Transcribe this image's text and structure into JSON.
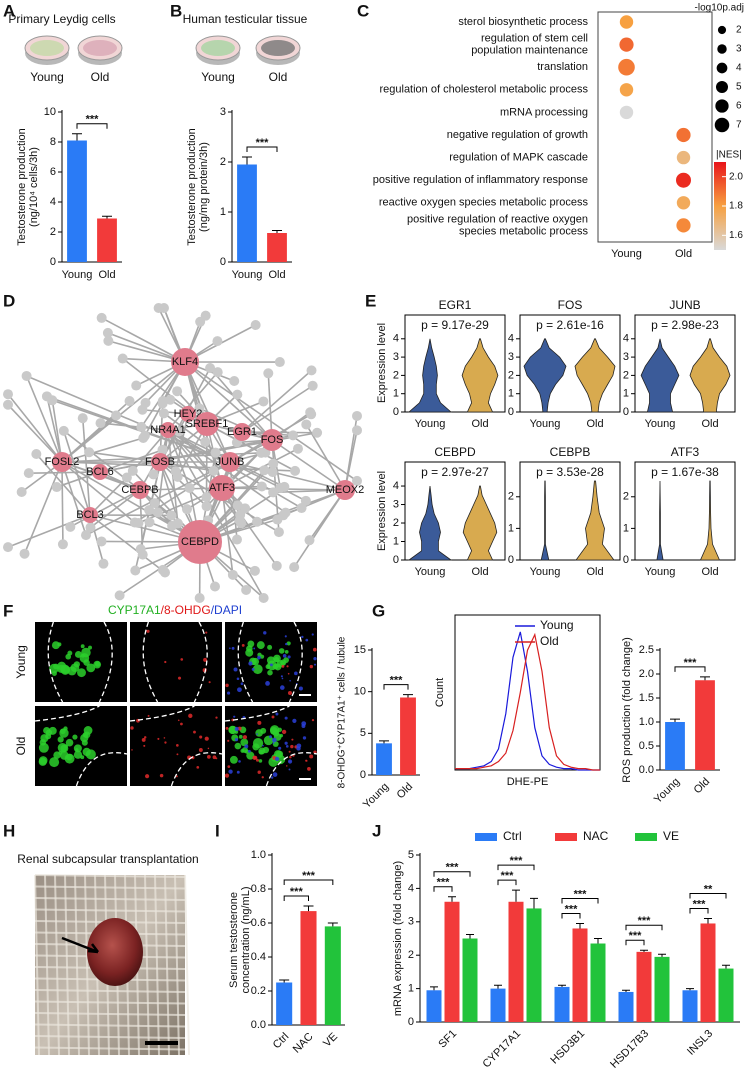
{
  "chart_data": [
    {
      "type": "bar",
      "panel": "A",
      "title": "Primary Leydig cells",
      "categories": [
        "Young",
        "Old"
      ],
      "values": [
        8.1,
        2.9
      ],
      "errors": [
        0.45,
        0.15
      ],
      "colors": [
        "#2a7bf6",
        "#f23a3a"
      ],
      "ylim": [
        0,
        10
      ],
      "yticks": [
        0,
        2,
        4,
        6,
        8,
        10
      ],
      "ylabel": [
        "Testosterone production",
        "(ng/10⁴ cells/3h)"
      ],
      "significance": "***"
    },
    {
      "type": "bar",
      "panel": "B",
      "title": "Human testicular tissue",
      "categories": [
        "Young",
        "Old"
      ],
      "values": [
        1.95,
        0.58
      ],
      "errors": [
        0.15,
        0.05
      ],
      "colors": [
        "#2a7bf6",
        "#f23a3a"
      ],
      "ylim": [
        0,
        3
      ],
      "yticks": [
        0,
        1,
        2,
        3
      ],
      "ylabel": [
        "Testosterone production",
        "(ng/mg protein/3h)"
      ],
      "significance": "***"
    },
    {
      "type": "dot",
      "panel": "C",
      "categories": [
        "Young",
        "Old"
      ],
      "terms": [
        [
          "sterol biosynthetic process"
        ],
        [
          "regulation of stem cell",
          "population maintenance"
        ],
        [
          "translation"
        ],
        [
          "regulation of cholesterol metabolic process"
        ],
        [
          "mRNA processing"
        ],
        [
          "negative regulation of growth"
        ],
        [
          "regulation of MAPK cascade"
        ],
        [
          "positive regulation of inflammatory response"
        ],
        [
          "reactive oxygen species metabolic process"
        ],
        [
          "positive regulation of reactive oxygen",
          "species metabolic process"
        ]
      ],
      "x": [
        "Young",
        "Young",
        "Young",
        "Young",
        "Young",
        "Old",
        "Old",
        "Old",
        "Old",
        "Old"
      ],
      "sizes": [
        4,
        4.5,
        6,
        4,
        4,
        4.5,
        4,
        5,
        4,
        4.5
      ],
      "nes": [
        1.8,
        1.92,
        1.88,
        1.78,
        1.5,
        1.9,
        1.68,
        2.05,
        1.75,
        1.85
      ],
      "size_title": "-log10p.adj",
      "size_ticks": [
        2,
        3,
        4,
        5,
        6,
        7
      ],
      "color_title": "|NES|",
      "nes_lim": [
        1.5,
        2.1
      ],
      "nes_ticks": [
        1.6,
        1.8,
        {
          "value": 2,
          "label": "2.0"
        }
      ],
      "colorscale": [
        "#d9d9d9",
        "#f7a040",
        "#e8141a"
      ]
    },
    {
      "type": "violin",
      "panel": "E",
      "ylabel": "Expression level",
      "categories": [
        "Young",
        "Old"
      ],
      "colors": [
        "#3b5b99",
        "#d8aa4f"
      ],
      "subplots": [
        {
          "title": "EGR1",
          "pvalue": "p = 9.17e-29",
          "ylim": [
            0,
            5.3
          ],
          "yticks": [
            0,
            1,
            2,
            3,
            4
          ],
          "levels": [
            0,
            0.5,
            1,
            1.5,
            2,
            2.5,
            3,
            3.5,
            4
          ],
          "series": [
            {
              "values": [
                1,
                0.5,
                0.3,
                0.3,
                0.35,
                0.3,
                0.2,
                0.08,
                0
              ]
            },
            {
              "values": [
                0.6,
                0.4,
                0.5,
                0.7,
                0.85,
                0.7,
                0.4,
                0.15,
                0.02
              ]
            }
          ]
        },
        {
          "title": "FOS",
          "pvalue": "p = 2.61e-16",
          "ylim": [
            0,
            5.3
          ],
          "yticks": [
            0,
            1,
            2,
            3,
            4
          ],
          "levels": [
            0,
            0.5,
            1,
            1.5,
            2,
            2.5,
            3,
            3.5,
            4
          ],
          "series": [
            {
              "values": [
                0.1,
                0.15,
                0.25,
                0.5,
                0.85,
                1,
                0.7,
                0.2,
                0.02
              ]
            },
            {
              "values": [
                0.15,
                0.2,
                0.35,
                0.6,
                0.85,
                0.95,
                0.6,
                0.2,
                0.02
              ]
            }
          ]
        },
        {
          "title": "JUNB",
          "pvalue": "p = 2.98e-23",
          "ylim": [
            0,
            5.3
          ],
          "yticks": [
            0,
            1,
            2,
            3,
            4
          ],
          "levels": [
            0,
            0.5,
            1,
            1.5,
            2,
            2.5,
            3,
            3.5,
            4
          ],
          "series": [
            {
              "values": [
                0.6,
                0.5,
                0.5,
                0.7,
                0.9,
                0.7,
                0.4,
                0.1,
                0
              ]
            },
            {
              "values": [
                0.3,
                0.35,
                0.45,
                0.75,
                0.95,
                0.8,
                0.45,
                0.15,
                0.02
              ]
            }
          ]
        },
        {
          "title": "CEBPD",
          "pvalue": "p = 2.97e-27",
          "ylim": [
            0,
            5.3
          ],
          "yticks": [
            0,
            1,
            2,
            3,
            4
          ],
          "levels": [
            0,
            0.5,
            1,
            1.5,
            2,
            2.5,
            3,
            3.5,
            4
          ],
          "series": [
            {
              "values": [
                1,
                0.4,
                0.4,
                0.5,
                0.4,
                0.2,
                0.1,
                0.05,
                0
              ]
            },
            {
              "values": [
                0.6,
                0.4,
                0.6,
                0.8,
                0.7,
                0.5,
                0.3,
                0.1,
                0.02
              ]
            }
          ]
        },
        {
          "title": "CEBPB",
          "pvalue": "p = 3.53e-28",
          "ylim": [
            0,
            3.1
          ],
          "yticks": [
            0,
            1,
            2
          ],
          "levels": [
            0,
            0.5,
            1,
            1.5,
            2,
            2.5
          ],
          "series": [
            {
              "values": [
                0.18,
                0.02,
                0.02,
                0.02,
                0.02,
                0.01
              ]
            },
            {
              "values": [
                0.9,
                0.35,
                0.45,
                0.2,
                0.1,
                0.03
              ]
            }
          ]
        },
        {
          "title": "ATF3",
          "pvalue": "p = 1.67e-38",
          "ylim": [
            0,
            3.1
          ],
          "yticks": [
            0,
            1,
            2
          ],
          "levels": [
            0,
            0.5,
            1,
            1.5,
            2,
            2.5
          ],
          "series": [
            {
              "values": [
                0.15,
                0.02,
                0.02,
                0.02,
                0.01,
                0
              ]
            },
            {
              "values": [
                0.45,
                0.12,
                0.05,
                0.03,
                0.02,
                0.01
              ]
            }
          ]
        }
      ]
    },
    {
      "type": "bar",
      "panel": "F",
      "stain_title": [
        {
          "text": "CYP17A1",
          "color": "#22b022"
        },
        {
          "text": "/8-OHDG",
          "color": "#e01818"
        },
        {
          "text": "/DAPI",
          "color": "#1e3fd0"
        }
      ],
      "categories": [
        "Young",
        "Old"
      ],
      "values": [
        3.8,
        9.3
      ],
      "errors": [
        0.3,
        0.35
      ],
      "colors": [
        "#2a7bf6",
        "#f23a3a"
      ],
      "ylim": [
        0,
        15
      ],
      "yticks": [
        0,
        5,
        10,
        15
      ],
      "ylabel": "8-OHDG⁺CYP17A1⁺ cells / tubule",
      "significance": "***"
    },
    {
      "type": "density",
      "panel": "G",
      "xlabel": "DHE-PE",
      "ylabel": "Count",
      "x": [
        0,
        1,
        2,
        3,
        4,
        5,
        6,
        7,
        8,
        9,
        10,
        11,
        12,
        13,
        14,
        15,
        16,
        17,
        18,
        19,
        20
      ],
      "xlim": [
        0,
        20
      ],
      "ylim": [
        0,
        110
      ],
      "series": [
        {
          "name": "Young",
          "color": "#1a1adb",
          "values": [
            1,
            1,
            1,
            2,
            3,
            6,
            15,
            40,
            80,
            98,
            70,
            30,
            10,
            4,
            2,
            1,
            1,
            0,
            0,
            0,
            0
          ]
        },
        {
          "name": "Old",
          "color": "#d82020",
          "values": [
            1,
            1,
            1,
            1,
            2,
            3,
            6,
            12,
            28,
            55,
            85,
            96,
            70,
            30,
            10,
            4,
            2,
            1,
            1,
            0,
            0
          ]
        }
      ]
    },
    {
      "type": "bar",
      "categories": [
        "Young",
        "Old"
      ],
      "values": [
        1.0,
        1.87
      ],
      "errors": [
        0.06,
        0.07
      ],
      "colors": [
        "#2a7bf6",
        "#f23a3a"
      ],
      "ylim": [
        0,
        2.5
      ],
      "yticks": [
        {
          "value": 0,
          "label": "0.0"
        },
        0.5,
        {
          "value": 1,
          "label": "1.0"
        },
        1.5,
        {
          "value": 2,
          "label": "2.0"
        },
        2.5
      ],
      "ylabel": "ROS production (fold change)",
      "significance": "***"
    },
    {
      "type": "bar",
      "panel": "I",
      "categories": [
        "Ctrl",
        "NAC",
        "VE"
      ],
      "values": [
        0.25,
        0.67,
        0.58
      ],
      "errors": [
        0.015,
        0.03,
        0.02
      ],
      "colors": [
        "#2a7bf6",
        "#f23a3a",
        "#22c33b"
      ],
      "ylim": [
        0,
        1
      ],
      "yticks": [
        {
          "value": 0,
          "label": "0.0"
        },
        0.2,
        0.4,
        0.6,
        0.8,
        {
          "value": 1,
          "label": "1.0"
        }
      ],
      "ylabel": [
        "Serum testosterone",
        "concentration (ng/mL)"
      ],
      "significance": [
        "***",
        "***"
      ]
    },
    {
      "type": "grouped_bar",
      "panel": "J",
      "categories": [
        "SF1",
        "CYP17A1",
        "HSD3B1",
        "HSD17B3",
        "INSL3"
      ],
      "series": [
        {
          "name": "Ctrl",
          "color": "#2a7bf6",
          "values": [
            0.95,
            1.0,
            1.05,
            0.9,
            0.95
          ],
          "errors": [
            0.1,
            0.1,
            0.05,
            0.05,
            0.05
          ]
        },
        {
          "name": "NAC",
          "color": "#f23a3a",
          "values": [
            3.6,
            3.6,
            2.8,
            2.1,
            2.95
          ],
          "errors": [
            0.15,
            0.35,
            0.15,
            0.05,
            0.15
          ]
        },
        {
          "name": "VE",
          "color": "#22c33b",
          "values": [
            2.5,
            3.4,
            2.35,
            1.95,
            1.6
          ],
          "errors": [
            0.12,
            0.3,
            0.15,
            0.08,
            0.1
          ]
        }
      ],
      "ylim": [
        0,
        5
      ],
      "yticks": [
        0,
        1,
        2,
        3,
        4,
        5
      ],
      "ylabel": "mRNA expression (fold change)",
      "significance": [
        [
          "***",
          "***"
        ],
        [
          "***",
          "***"
        ],
        [
          "***",
          "***"
        ],
        [
          "***",
          "***"
        ],
        [
          "***",
          "**"
        ]
      ]
    }
  ],
  "network": {
    "panel": "D",
    "nodes": [
      "KLF4",
      "HEY2",
      "NR4A1",
      "SREBF1",
      "EGR1",
      "FOS",
      "FOSL2",
      "BCL6",
      "FOSB",
      "JUNB",
      "CEBPB",
      "ATF3",
      "MEOX2",
      "BCL3",
      "CEBPD"
    ]
  },
  "photo": {
    "panel": "H",
    "title": "Renal subcapsular transplantation"
  }
}
